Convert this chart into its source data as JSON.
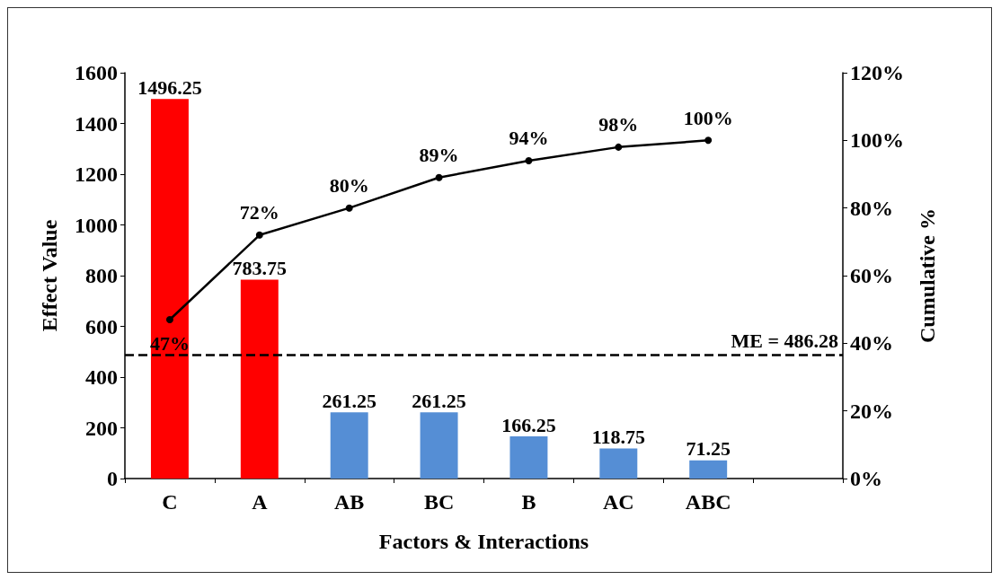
{
  "chart_data": {
    "type": "bar",
    "xlabel": "Factors & Interactions",
    "ylabel": "Effect Value",
    "y2label": "Cumulative %",
    "categories": [
      "C",
      "A",
      "AB",
      "BC",
      "B",
      "AC",
      "ABC",
      null
    ],
    "series": [
      {
        "colors": [
          "#ff0000",
          "#ff0000",
          "#558ed5",
          "#558ed5",
          "#558ed5",
          "#558ed5",
          "#558ed5",
          null
        ],
        "values": [
          1496.25,
          783.75,
          261.25,
          261.25,
          166.25,
          118.75,
          71.25,
          null
        ],
        "value_labels": [
          "1496.25",
          "783.75",
          "261.25",
          "261.25",
          "166.25",
          "118.75",
          "71.25",
          null
        ]
      },
      {
        "type": "line",
        "axis": "y2",
        "color": "#000000",
        "marker": "circle",
        "line_style": "solid",
        "values": [
          47,
          72,
          80,
          89,
          94,
          98,
          100,
          null
        ],
        "value_labels": [
          "47%",
          "72%",
          "80%",
          "89%",
          "94%",
          "98%",
          "100%",
          null
        ]
      }
    ],
    "ylim": [
      0,
      1600
    ],
    "yticks": [
      0,
      200,
      400,
      600,
      800,
      1000,
      1200,
      1400,
      1600
    ],
    "y2lim": [
      0,
      120
    ],
    "y2ticks": [
      {
        "value": 0,
        "label": "0%"
      },
      {
        "value": 20,
        "label": "20%"
      },
      {
        "value": 40,
        "label": "40%"
      },
      {
        "value": 60,
        "label": "60%"
      },
      {
        "value": 80,
        "label": "80%"
      },
      {
        "value": 100,
        "label": "100%"
      },
      {
        "value": 120,
        "label": "120%"
      }
    ],
    "ref_lines": [
      {
        "axis": "y",
        "value": 486.28,
        "label": "ME = 486.28",
        "color": "#000000",
        "line_style": "dashed"
      }
    ],
    "grid": false
  }
}
